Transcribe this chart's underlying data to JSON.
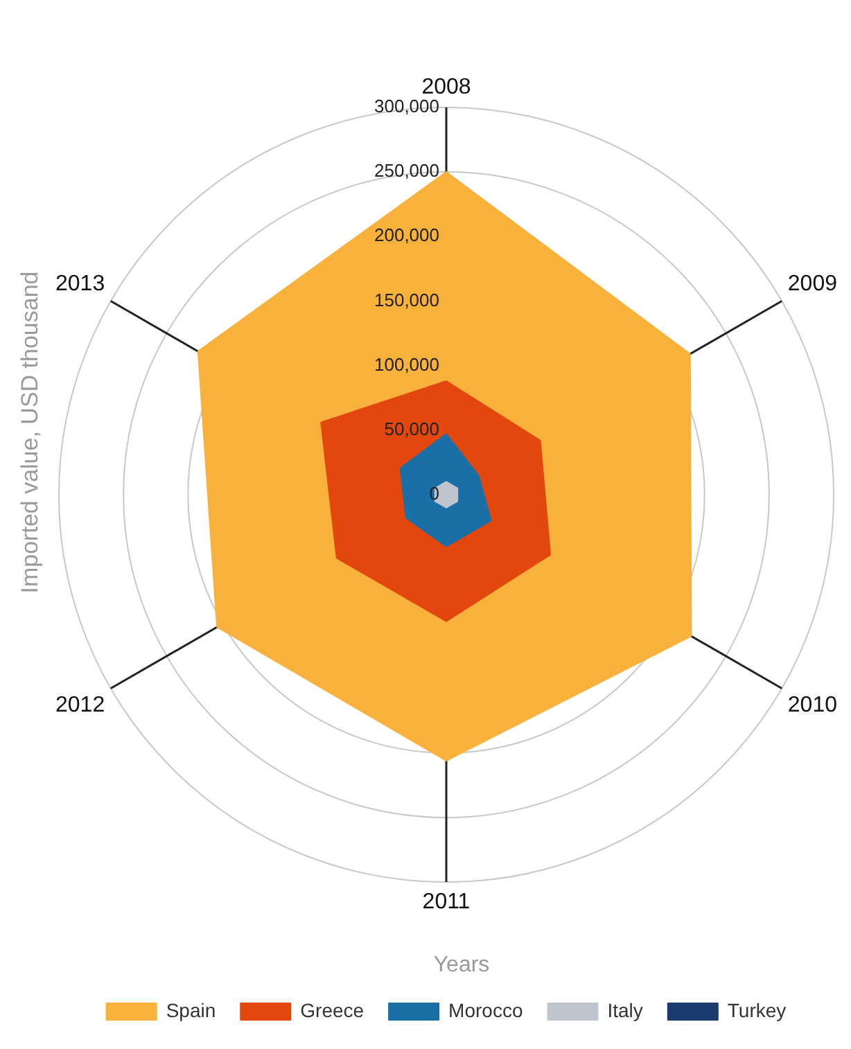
{
  "chart_data": {
    "type": "radar",
    "xlabel": "Years",
    "ylabel": "Imported value, USD thousand",
    "categories": [
      "2008",
      "2009",
      "2010",
      "2011",
      "2012",
      "2013"
    ],
    "series": [
      {
        "name": "Spain",
        "color": "#f8b23c",
        "values": [
          250000,
          218000,
          219000,
          206000,
          205000,
          222000
        ]
      },
      {
        "name": "Greece",
        "color": "#e2470e",
        "values": [
          88000,
          84000,
          93000,
          98000,
          98000,
          112000
        ]
      },
      {
        "name": "Morocco",
        "color": "#1a6fa6",
        "values": [
          47000,
          29000,
          40000,
          40000,
          36000,
          41000
        ]
      },
      {
        "name": "Italy",
        "color": "#c0c4cc",
        "values": [
          10000,
          10000,
          10000,
          10000,
          10000,
          10000
        ]
      },
      {
        "name": "Turkey",
        "color": "#1b3a6e",
        "values": [
          null,
          null,
          null,
          null,
          null,
          null
        ]
      }
    ],
    "ylim": [
      0,
      300000
    ],
    "yticks": [
      0,
      {
        "value": 50000,
        "label": "50,000"
      },
      {
        "value": 100000,
        "label": "100,000"
      },
      {
        "value": 150000,
        "label": "150,000"
      },
      {
        "value": 200000,
        "label": "200,000"
      },
      {
        "value": 250000,
        "label": "250,000"
      },
      {
        "value": 300000,
        "label": "300,000"
      }
    ],
    "grid": true,
    "legend": "bottom",
    "marker": "none",
    "line_style": "solid"
  }
}
